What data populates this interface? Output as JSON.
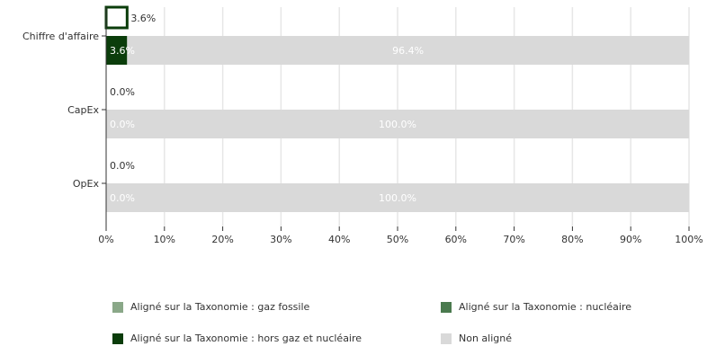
{
  "chart_data": {
    "type": "bar",
    "orientation": "horizontal",
    "categories": [
      "Chiffre d'affaire",
      "CapEx",
      "OpEx"
    ],
    "series": [
      {
        "name": "Aligné sur la Taxonomie : gaz fossile",
        "color": "#8aa888",
        "values": [
          0.0,
          0.0,
          0.0
        ]
      },
      {
        "name": "Aligné sur la Taxonomie : nucléaire",
        "color": "#4a7a4e",
        "values": [
          0.0,
          0.0,
          0.0
        ]
      },
      {
        "name": "Aligné sur la Taxonomie : hors gaz et nucléaire",
        "color": "#0b3d0b",
        "values": [
          3.6,
          0.0,
          0.0
        ]
      },
      {
        "name": "Non aligné",
        "color": "#d9d9d9",
        "values": [
          96.4,
          100.0,
          100.0
        ]
      }
    ],
    "top_bars": {
      "values": [
        3.6,
        0.0,
        0.0
      ],
      "labels": [
        "3.6%",
        "0.0%",
        "0.0%"
      ]
    },
    "bottom_bar_labels": {
      "aligned": [
        "3.6%",
        "0.0%",
        "0.0%"
      ],
      "non_aligned": [
        "96.4%",
        "100.0%",
        "100.0%"
      ]
    },
    "xlim": [
      0,
      100
    ],
    "xticks": [
      "0%",
      "10%",
      "20%",
      "30%",
      "40%",
      "50%",
      "60%",
      "70%",
      "80%",
      "90%",
      "100%"
    ],
    "grid": true,
    "legend_position": "bottom"
  }
}
